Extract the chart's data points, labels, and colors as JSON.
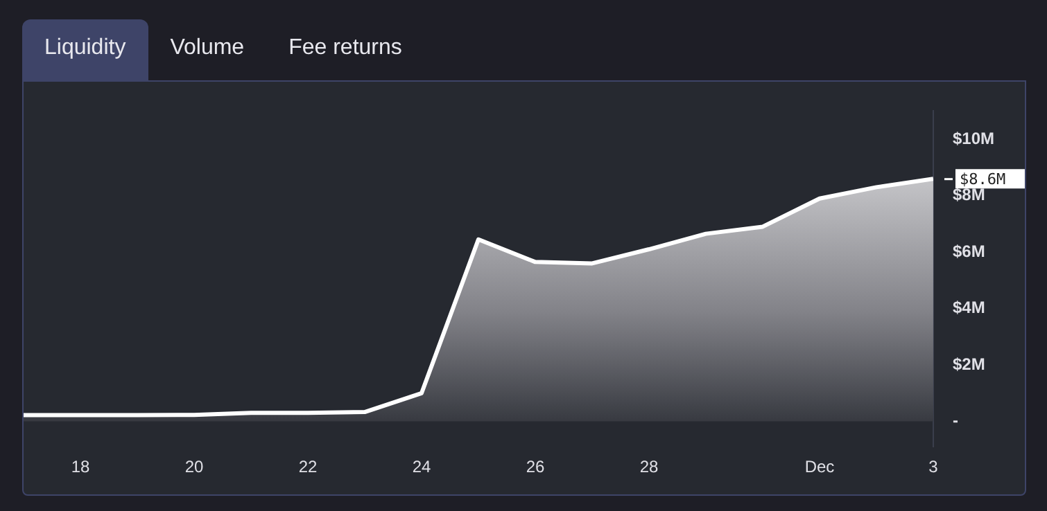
{
  "chart_data": {
    "type": "area",
    "annotations": [
      "Liquidity",
      "Volume",
      "Fee returns",
      {
        "text": "$8.6M",
        "x": "--12-03",
        "y": 8.6
      }
    ],
    "x": [
      "--11-17",
      "--11-18",
      "--11-19",
      "--11-20",
      "--11-21",
      "--11-22",
      "--11-23",
      "--11-24",
      "--11-25",
      "--11-26",
      "--11-27",
      "--11-28",
      "--11-29",
      "--11-30",
      "--12-01",
      "--12-02",
      "--12-03"
    ],
    "series": [
      {
        "color": "#ffffff",
        "values": [
          0.22,
          0.22,
          0.22,
          0.23,
          0.3,
          0.3,
          0.33,
          1.0,
          6.45,
          5.65,
          5.6,
          6.1,
          6.65,
          6.9,
          7.9,
          8.3,
          8.6
        ]
      }
    ],
    "xlim": [
      "--11-17",
      "--12-03"
    ],
    "xticks": [
      {
        "value": "--11-18",
        "label": "18"
      },
      {
        "value": "--11-20",
        "label": "20"
      },
      {
        "value": "--11-22",
        "label": "22"
      },
      {
        "value": "--11-24",
        "label": "24"
      },
      {
        "value": "--11-26",
        "label": "26"
      },
      {
        "value": "--11-28",
        "label": "28"
      },
      {
        "value": "--12-01",
        "label": "Dec"
      },
      {
        "value": "--12-03",
        "label": "3"
      }
    ],
    "ylim": [
      -0.9,
      11
    ],
    "yticks": [
      {
        "value": 0,
        "label": "-"
      },
      {
        "value": 2,
        "label": "$2M"
      },
      {
        "value": 4,
        "label": "$4M"
      },
      {
        "value": 6,
        "label": "$6M"
      },
      {
        "value": 8,
        "label": "$8M"
      },
      {
        "value": 10,
        "label": "$10M"
      }
    ],
    "grid": false,
    "legend": false,
    "marker": "none",
    "line_style": "solid"
  }
}
